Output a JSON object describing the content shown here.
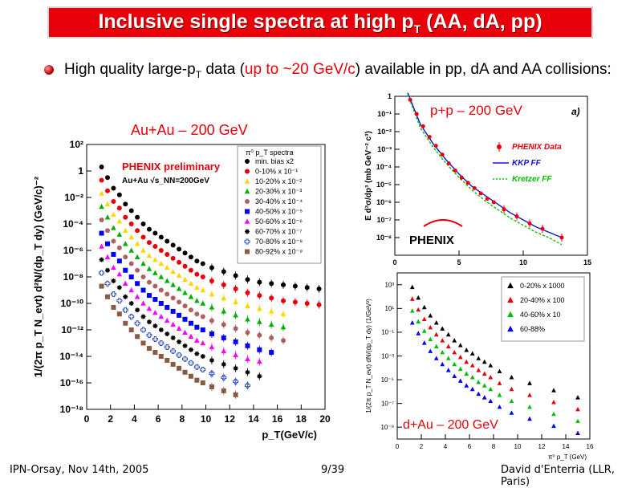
{
  "slide": {
    "title_main": "Inclusive single spectra at high p",
    "title_sub": "T",
    "title_tail": " (AA, dA, pp)",
    "bullet_a": "High quality large-p",
    "bullet_a_sub": "T",
    "bullet_b": " data (",
    "bullet_hl": "up to ~20 GeV/c",
    "bullet_c": ") available in pp, dA and AA collisions:",
    "footer_left": "IPN-Orsay, Nov 14th, 2005",
    "footer_center": "9/39",
    "footer_right": "David d'Enterria (LLR, Paris)",
    "colors": {
      "title_bg": "#e8000b",
      "accent_red": "#e8000b"
    }
  },
  "chart_data": [
    {
      "type": "scatter",
      "panel_label": "Au+Au – 200 GeV",
      "frame_title": "π⁰ p_T spectra",
      "annotation_prelim": "PHENIX preliminary",
      "annotation_energy": "Au+Au √s_NN=200GeV",
      "xlabel": "p_T(GeV/c)",
      "ylabel": "1/(2π p_T N_evt) d²N/(dp_T dy) (GeV/c)⁻²",
      "xlim": [
        0,
        20
      ],
      "ylim_log10": [
        -18,
        2
      ],
      "x_ticks": [
        "0",
        "2",
        "4",
        "6",
        "8",
        "10",
        "12",
        "14",
        "16",
        "18",
        "20"
      ],
      "y_ticks": [
        "10²",
        "1",
        "10⁻²",
        "10⁻⁴",
        "10⁻⁶",
        "10⁻⁸",
        "10⁻¹⁰",
        "10⁻¹²",
        "10⁻¹⁴",
        "10⁻¹⁶",
        "10⁻¹⁸"
      ],
      "legend_position": "top-right",
      "x": [
        1.25,
        1.75,
        2.25,
        2.75,
        3.25,
        3.75,
        4.25,
        4.75,
        5.25,
        5.75,
        6.25,
        6.75,
        7.25,
        7.75,
        8.25,
        8.75,
        9.25,
        9.75,
        10.5,
        11.5,
        12.5,
        13.5,
        14.5,
        15.5,
        16.5,
        17.5,
        18.5,
        19.5
      ],
      "series": [
        {
          "name": "min. bias x2",
          "color": "#000000",
          "marker": "circle",
          "y_log10": [
            0.3,
            -0.5,
            -1.3,
            -1.8,
            -2.5,
            -3.0,
            -3.5,
            -4.0,
            -4.4,
            -4.7,
            -5.0,
            -5.3,
            -5.6,
            -5.9,
            -6.2,
            -6.5,
            -6.8,
            -7.0,
            -7.3,
            -7.6,
            -7.9,
            -8.2,
            -8.4,
            -8.5,
            -8.6,
            -8.7,
            -8.8,
            -8.9
          ]
        },
        {
          "name": "0-10% x 10⁻¹",
          "color": "#e8000b",
          "marker": "circle",
          "y_log10": [
            -0.7,
            -1.5,
            -2.3,
            -2.8,
            -3.5,
            -4.0,
            -4.5,
            -5.0,
            -5.4,
            -5.7,
            -6.0,
            -6.3,
            -6.6,
            -6.9,
            -7.2,
            -7.5,
            -7.8,
            -8.0,
            -8.3,
            -8.6,
            -8.9,
            -9.2,
            -9.4,
            -9.6,
            -9.8,
            -9.9,
            -10.0,
            -10.1
          ]
        },
        {
          "name": "10-20% x 10⁻²",
          "color": "#ffd700",
          "marker": "triangle",
          "y_log10": [
            -1.7,
            -2.5,
            -3.3,
            -3.8,
            -4.5,
            -5.0,
            -5.5,
            -6.0,
            -6.4,
            -6.7,
            -7.0,
            -7.3,
            -7.6,
            -7.9,
            -8.2,
            -8.5,
            -8.8,
            -9.0,
            -9.3,
            -9.6,
            -9.9,
            -10.2,
            -10.4,
            -10.6,
            -10.8,
            null,
            null,
            null
          ]
        },
        {
          "name": "20-30% x 10⁻³",
          "color": "#00b000",
          "marker": "triangle",
          "y_log10": [
            -2.7,
            -3.5,
            -4.3,
            -4.8,
            -5.5,
            -6.0,
            -6.5,
            -7.0,
            -7.4,
            -7.7,
            -8.0,
            -8.3,
            -8.6,
            -8.9,
            -9.2,
            -9.5,
            -9.8,
            -10.0,
            -10.3,
            -10.6,
            -10.9,
            -11.2,
            -11.4,
            -11.6,
            -11.8,
            null,
            null,
            null
          ]
        },
        {
          "name": "30-40% x 10⁻⁴",
          "color": "#b06060",
          "marker": "circle",
          "y_log10": [
            -3.7,
            -4.5,
            -5.3,
            -5.8,
            -6.5,
            -7.0,
            -7.5,
            -8.0,
            -8.4,
            -8.7,
            -9.0,
            -9.3,
            -9.6,
            -9.9,
            -10.2,
            -10.5,
            -10.8,
            -11.0,
            -11.3,
            -11.6,
            -11.9,
            -12.2,
            -12.4,
            -12.6,
            -12.8,
            null,
            null,
            null
          ]
        },
        {
          "name": "40-50% x 10⁻⁵",
          "color": "#0000ff",
          "marker": "square",
          "y_log10": [
            -4.7,
            -5.5,
            -6.3,
            -6.8,
            -7.5,
            -8.0,
            -8.5,
            -9.0,
            -9.4,
            -9.7,
            -10.0,
            -10.3,
            -10.6,
            -10.9,
            -11.2,
            -11.5,
            -11.8,
            -12.0,
            -12.3,
            -12.6,
            -12.9,
            -13.2,
            -13.5,
            -13.7,
            null,
            null,
            null,
            null
          ]
        },
        {
          "name": "50-60% x 10⁻⁶",
          "color": "#ff00ff",
          "marker": "triangle",
          "y_log10": [
            -5.7,
            -6.5,
            -7.3,
            -7.8,
            -8.5,
            -9.0,
            -9.5,
            -10.0,
            -10.4,
            -10.7,
            -11.0,
            -11.3,
            -11.6,
            -11.9,
            -12.2,
            -12.5,
            -12.8,
            -13.0,
            -13.3,
            -13.6,
            -13.9,
            -14.2,
            -14.4,
            null,
            null,
            null,
            null,
            null
          ]
        },
        {
          "name": "60-70% x 10⁻⁷",
          "color": "#000000",
          "marker": "star",
          "y_log10": [
            -6.7,
            -7.5,
            -8.3,
            -8.8,
            -9.5,
            -10.0,
            -10.5,
            -11.0,
            -11.4,
            -11.7,
            -12.0,
            -12.3,
            -12.6,
            -12.9,
            -13.2,
            -13.5,
            -13.8,
            -14.0,
            -14.3,
            -14.6,
            -14.9,
            -15.2,
            -15.5,
            null,
            null,
            null,
            null,
            null
          ]
        },
        {
          "name": "70-80% x 10⁻⁸",
          "color": "#3050c0",
          "marker": "open-cross",
          "y_log10": [
            -7.7,
            -8.5,
            -9.3,
            -9.8,
            -10.5,
            -11.0,
            -11.5,
            -12.0,
            -12.4,
            -12.7,
            -13.0,
            -13.3,
            -13.6,
            -13.9,
            -14.2,
            -14.5,
            -14.8,
            -15.0,
            -15.3,
            -15.6,
            -15.9,
            -16.2,
            null,
            null,
            null,
            null,
            null,
            null
          ]
        },
        {
          "name": "80-92% x 10⁻⁹",
          "color": "#8b5a40",
          "marker": "square",
          "y_log10": [
            -8.7,
            -9.5,
            -10.3,
            -10.8,
            -11.5,
            -12.0,
            -12.5,
            -13.0,
            -13.4,
            -13.7,
            -14.0,
            -14.3,
            -14.6,
            -14.9,
            -15.2,
            -15.5,
            -15.8,
            -16.0,
            -16.3,
            -16.6,
            -16.9,
            null,
            null,
            null,
            null,
            null,
            null,
            null
          ]
        }
      ]
    },
    {
      "type": "scatter",
      "panel_label": "p+p – 200 GeV",
      "tag": "a)",
      "logo": "PHENIX",
      "xlabel": "",
      "ylabel": "E d³σ/dp³ (mb GeV⁻² c³)",
      "xlim": [
        0,
        15
      ],
      "ylim_log10": [
        -9,
        0
      ],
      "x_ticks": [
        "0",
        "5",
        "10",
        "15"
      ],
      "y_ticks": [
        "1",
        "10⁻¹",
        "10⁻²",
        "10⁻³",
        "10⁻⁴",
        "10⁻⁵",
        "10⁻⁶",
        "10⁻⁷",
        "10⁻⁸"
      ],
      "legend_position": "right",
      "series": [
        {
          "name": "PHENIX Data",
          "color": "#e8000b",
          "marker": "circle",
          "x": [
            1.2,
            1.7,
            2.2,
            2.7,
            3.2,
            3.7,
            4.2,
            4.7,
            5.2,
            5.7,
            6.2,
            6.7,
            7.2,
            7.7,
            8.5,
            9.5,
            10.5,
            11.5,
            13.0
          ],
          "y_log10": [
            -0.2,
            -1.0,
            -1.7,
            -2.3,
            -2.8,
            -3.3,
            -3.8,
            -4.2,
            -4.6,
            -4.9,
            -5.2,
            -5.5,
            -5.8,
            -6.0,
            -6.4,
            -6.8,
            -7.2,
            -7.5,
            -8.0
          ]
        },
        {
          "name": "KKP FF",
          "color": "#1010e0",
          "line": "solid",
          "x": [
            1.0,
            2.0,
            3.0,
            4.0,
            5.0,
            6.0,
            7.0,
            8.0,
            9.0,
            10.0,
            11.0,
            12.0,
            13.0
          ],
          "y_log10": [
            0.2,
            -1.6,
            -2.7,
            -3.6,
            -4.4,
            -5.1,
            -5.6,
            -6.1,
            -6.6,
            -7.0,
            -7.4,
            -7.7,
            -8.0
          ]
        },
        {
          "name": "Kretzer FF",
          "color": "#00c000",
          "line": "dotted",
          "x": [
            1.0,
            2.0,
            3.0,
            4.0,
            5.0,
            6.0,
            7.0,
            8.0,
            9.0,
            10.0,
            11.0,
            12.0,
            13.0
          ],
          "y_log10": [
            0.1,
            -1.8,
            -2.9,
            -3.8,
            -4.6,
            -5.3,
            -5.9,
            -6.4,
            -6.9,
            -7.3,
            -7.7,
            -8.0,
            -8.4
          ]
        }
      ]
    },
    {
      "type": "scatter",
      "panel_label": "d+Au – 200 GeV",
      "xlabel": "π⁰ p_T (GeV)",
      "ylabel": "1/(2π p_T N_evt) dN/(dp_T dy) (1/GeV²)",
      "xlim": [
        0,
        16
      ],
      "ylim_log10": [
        -10,
        4
      ],
      "x_ticks": [
        "0",
        "2",
        "4",
        "6",
        "8",
        "10",
        "12",
        "14",
        "16"
      ],
      "y_ticks": [
        "10³",
        "10¹",
        "10⁻¹",
        "10⁻³",
        "10⁻⁵",
        "10⁻⁷",
        "10⁻⁹"
      ],
      "legend_position": "top-right",
      "x": [
        1.25,
        1.75,
        2.25,
        2.75,
        3.25,
        3.75,
        4.25,
        4.75,
        5.25,
        5.75,
        6.25,
        6.75,
        7.25,
        7.75,
        8.5,
        9.5,
        11.0,
        13.0,
        15.0
      ],
      "series": [
        {
          "name": "0-20% x 1000",
          "color": "#000000",
          "marker": "triangle",
          "y_log10": [
            2.8,
            1.9,
            1.1,
            0.4,
            -0.2,
            -0.7,
            -1.2,
            -1.7,
            -2.1,
            -2.5,
            -2.8,
            -3.2,
            -3.5,
            -3.8,
            -4.3,
            -4.8,
            -5.3,
            -5.9,
            -6.5
          ]
        },
        {
          "name": "20-40% x 100",
          "color": "#e8000b",
          "marker": "triangle",
          "y_log10": [
            1.8,
            0.9,
            0.1,
            -0.6,
            -1.2,
            -1.7,
            -2.2,
            -2.7,
            -3.1,
            -3.5,
            -3.8,
            -4.2,
            -4.5,
            -4.8,
            -5.3,
            -5.8,
            -6.3,
            -6.9,
            -7.5
          ]
        },
        {
          "name": "40-60% x  10",
          "color": "#00c000",
          "marker": "triangle",
          "y_log10": [
            0.8,
            -0.1,
            -0.9,
            -1.6,
            -2.2,
            -2.7,
            -3.2,
            -3.7,
            -4.1,
            -4.5,
            -4.8,
            -5.2,
            -5.5,
            -5.8,
            -6.3,
            -6.8,
            -7.3,
            -7.9,
            -8.5
          ]
        },
        {
          "name": "60-88%",
          "color": "#0000ff",
          "marker": "triangle",
          "y_log10": [
            -0.2,
            -1.1,
            -1.9,
            -2.6,
            -3.2,
            -3.7,
            -4.2,
            -4.7,
            -5.1,
            -5.5,
            -5.8,
            -6.2,
            -6.5,
            -6.8,
            -7.3,
            -7.8,
            -8.3,
            -8.9,
            -9.5
          ]
        }
      ]
    }
  ]
}
